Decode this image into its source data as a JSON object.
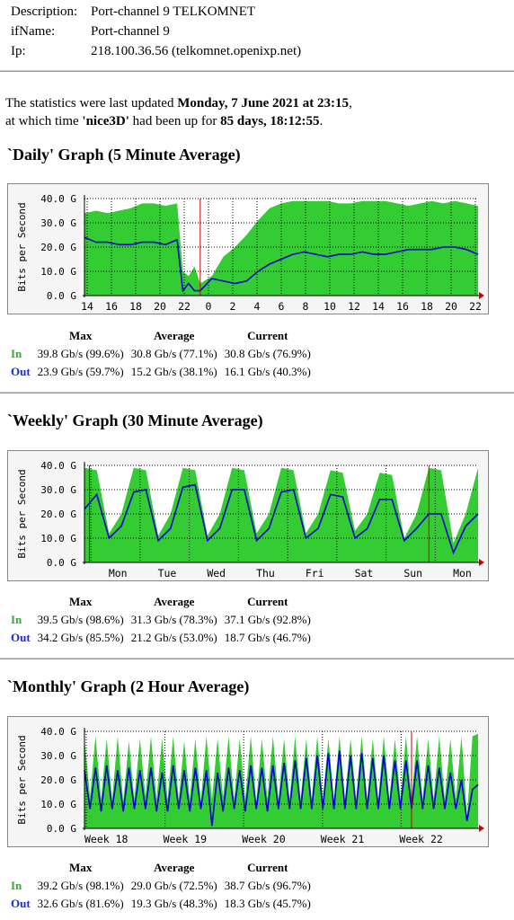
{
  "info": {
    "description_label": "Description:",
    "description": "Port-channel 9 TELKOMNET",
    "ifname_label": "ifName:",
    "ifname": "Port-channel 9",
    "ip_label": "Ip:",
    "ip": "218.100.36.56 (telkomnet.openixp.net)"
  },
  "stats": {
    "line1_pre": "The statistics were last updated ",
    "updated": "Monday, 7 June 2021 at 23:15",
    "line1_post": ",",
    "line2_pre": "at which time ",
    "device": "'nice3D'",
    "line2_mid": " had been up for ",
    "uptime": "85 days, 18:12:55",
    "line2_post": "."
  },
  "table_headers": {
    "max": "Max",
    "average": "Average",
    "current": "Current",
    "in": "In",
    "out": "Out"
  },
  "colors": {
    "in": "#33cc33",
    "out": "#0000cc",
    "marker": "#cc0000",
    "grid": "#000000",
    "plot_bg": "#ffffff"
  },
  "chart_data": [
    {
      "type": "area",
      "title": "`Daily' Graph (5 Minute Average)",
      "ylabel": "Bits per Second",
      "ylim": [
        0,
        40
      ],
      "yticks": [
        "0.0 G",
        "10.0 G",
        "20.0 G",
        "30.0 G",
        "40.0 G"
      ],
      "x_labels": [
        "14",
        "16",
        "18",
        "20",
        "22",
        "0",
        "2",
        "4",
        "6",
        "8",
        "10",
        "12",
        "14",
        "16",
        "18",
        "20",
        "22"
      ],
      "x_values": [
        14,
        15,
        16,
        17,
        18,
        19,
        20,
        21,
        22,
        22.5,
        23,
        23.5,
        24,
        25,
        26,
        27,
        28,
        29,
        30,
        31,
        32,
        33,
        34,
        35,
        36,
        37,
        38,
        39,
        40,
        41,
        42,
        43,
        44,
        45,
        46,
        47,
        48
      ],
      "series": [
        {
          "name": "In",
          "values": [
            34,
            35,
            34,
            35,
            36,
            38,
            38,
            37,
            38,
            10,
            8,
            12,
            5,
            8,
            16,
            20,
            25,
            31,
            36,
            38,
            39,
            39,
            39,
            39,
            38,
            38,
            39,
            39,
            39,
            38,
            37,
            38,
            39,
            38,
            39,
            38,
            37
          ]
        },
        {
          "name": "Out",
          "values": [
            24,
            22,
            22,
            21,
            21,
            22,
            22,
            21,
            23,
            2,
            5,
            2,
            2,
            7,
            6,
            5,
            6,
            10,
            13,
            15,
            17,
            18,
            17,
            16,
            17,
            17,
            18,
            17,
            17,
            18,
            19,
            19,
            19,
            20,
            20,
            19,
            17
          ]
        }
      ],
      "markers": [
        24
      ],
      "max": {
        "in": "39.8 Gb/s (99.6%)",
        "out": "23.9 Gb/s (59.7%)"
      },
      "average": {
        "in": "30.8 Gb/s (77.1%)",
        "out": "15.2 Gb/s (38.1%)"
      },
      "current": {
        "in": "30.8 Gb/s (76.9%)",
        "out": "16.1 Gb/s (40.3%)"
      }
    },
    {
      "type": "area",
      "title": "`Weekly' Graph (30 Minute Average)",
      "ylabel": "Bits per Second",
      "ylim": [
        0,
        40
      ],
      "yticks": [
        "0.0 G",
        "10.0 G",
        "20.0 G",
        "30.0 G",
        "40.0 G"
      ],
      "x_labels": [
        "Mon",
        "Tue",
        "Wed",
        "Thu",
        "Fri",
        "Sat",
        "Sun",
        "Mon"
      ],
      "x_values": [
        0,
        0.25,
        0.5,
        0.75,
        1,
        1.25,
        1.5,
        1.75,
        2,
        2.25,
        2.5,
        2.75,
        3,
        3.25,
        3.5,
        3.75,
        4,
        4.25,
        4.5,
        4.75,
        5,
        5.25,
        5.5,
        5.75,
        6,
        6.25,
        6.5,
        6.75,
        7,
        7.25,
        7.5,
        7.75,
        8
      ],
      "series": [
        {
          "name": "In",
          "values": [
            39,
            38,
            12,
            20,
            39,
            38,
            11,
            20,
            39,
            38,
            11,
            20,
            39,
            38,
            12,
            20,
            39,
            38,
            12,
            20,
            38,
            37,
            13,
            20,
            37,
            36,
            10,
            20,
            39,
            38,
            8,
            20,
            39
          ]
        },
        {
          "name": "Out",
          "values": [
            22,
            28,
            10,
            15,
            29,
            30,
            9,
            14,
            31,
            32,
            9,
            14,
            30,
            30,
            9,
            14,
            29,
            30,
            10,
            14,
            28,
            27,
            10,
            14,
            26,
            26,
            9,
            14,
            20,
            20,
            4,
            15,
            20
          ]
        }
      ],
      "markers": [
        0.1,
        7.0
      ],
      "max": {
        "in": "39.5 Gb/s (98.6%)",
        "out": "34.2 Gb/s (85.5%)"
      },
      "average": {
        "in": "31.3 Gb/s (78.3%)",
        "out": "21.2 Gb/s (53.0%)"
      },
      "current": {
        "in": "37.1 Gb/s (92.8%)",
        "out": "18.7 Gb/s (46.7%)"
      }
    },
    {
      "type": "area",
      "title": "`Monthly' Graph (2 Hour Average)",
      "ylabel": "Bits per Second",
      "ylim": [
        0,
        40
      ],
      "yticks": [
        "0.0 G",
        "10.0 G",
        "20.0 G",
        "30.0 G",
        "40.0 G"
      ],
      "x_labels": [
        "Week 18",
        "Week 19",
        "Week 20",
        "Week 21",
        "Week 22"
      ],
      "x_values": [
        0,
        0.5,
        1,
        1.5,
        2,
        2.5,
        3,
        3.5,
        4,
        4.5,
        5,
        5.5,
        6,
        6.5,
        7,
        7.5,
        8,
        8.5,
        9,
        9.5,
        10,
        10.5,
        11,
        11.5,
        12,
        12.5,
        13,
        13.5,
        14,
        14.5,
        15,
        15.5,
        16,
        16.5,
        17,
        17.5,
        18,
        18.5,
        19,
        19.5,
        20,
        20.5,
        21,
        21.5,
        22,
        22.5,
        23,
        23.5,
        24,
        24.5,
        25,
        25.5,
        26,
        26.5,
        27,
        27.5,
        28,
        28.5,
        29,
        29.5,
        30,
        30.5,
        31,
        31.5,
        32,
        32.5,
        33,
        33.5,
        34,
        34.5,
        35,
        35.5
      ],
      "series": [
        {
          "name": "In",
          "values": [
            37,
            13,
            38,
            12,
            37,
            12,
            38,
            11,
            36,
            12,
            37,
            13,
            38,
            12,
            37,
            12,
            38,
            12,
            36,
            12,
            37,
            11,
            38,
            12,
            37,
            13,
            38,
            12,
            37,
            12,
            38,
            11,
            37,
            12,
            38,
            12,
            37,
            12,
            38,
            12,
            37,
            12,
            38,
            12,
            37,
            12,
            38,
            12,
            37,
            12,
            38,
            12,
            37,
            12,
            38,
            12,
            37,
            12,
            38,
            12,
            38,
            12,
            37,
            12,
            38,
            12,
            37,
            12,
            38,
            5,
            38,
            39
          ]
        },
        {
          "name": "Out",
          "values": [
            24,
            8,
            25,
            7,
            26,
            8,
            24,
            7,
            25,
            8,
            24,
            8,
            25,
            7,
            23,
            7,
            26,
            8,
            24,
            7,
            25,
            8,
            24,
            1,
            23,
            7,
            25,
            8,
            24,
            7,
            26,
            8,
            25,
            7,
            26,
            8,
            27,
            8,
            28,
            8,
            29,
            8,
            30,
            8,
            31,
            8,
            32,
            8,
            30,
            8,
            31,
            8,
            29,
            8,
            30,
            8,
            28,
            8,
            28,
            8,
            28,
            8,
            26,
            8,
            25,
            8,
            23,
            8,
            20,
            3,
            16,
            18
          ]
        }
      ],
      "markers": [
        29.5
      ],
      "max": {
        "in": "39.2 Gb/s (98.1%)",
        "out": "32.6 Gb/s (81.6%)"
      },
      "average": {
        "in": "29.0 Gb/s (72.5%)",
        "out": "19.3 Gb/s (48.3%)"
      },
      "current": {
        "in": "38.7 Gb/s (96.7%)",
        "out": "18.3 Gb/s (45.7%)"
      }
    }
  ]
}
